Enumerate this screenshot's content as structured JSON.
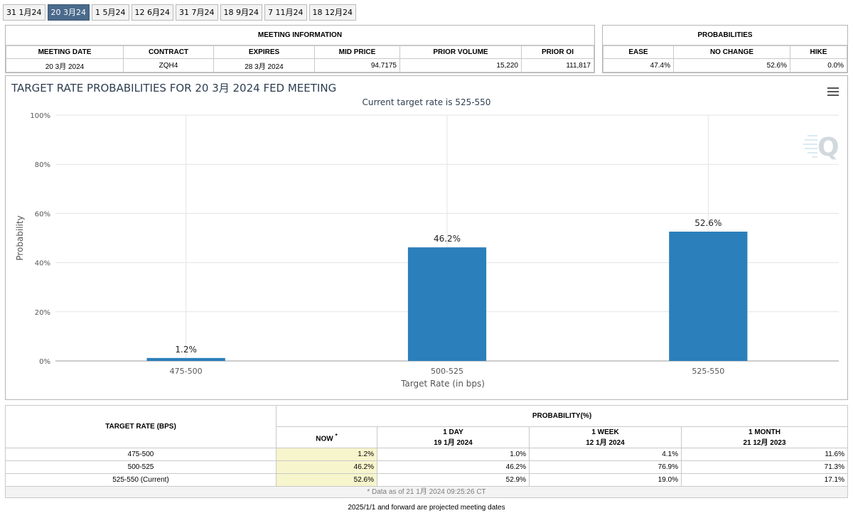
{
  "tabs": [
    "31 1月24",
    "20 3月24",
    "1 5月24",
    "12 6月24",
    "31 7月24",
    "18 9月24",
    "7 11月24",
    "18 12月24"
  ],
  "active_tab": 1,
  "meeting_info": {
    "title": "MEETING INFORMATION",
    "headers": [
      "MEETING DATE",
      "CONTRACT",
      "EXPIRES",
      "MID PRICE",
      "PRIOR VOLUME",
      "PRIOR OI"
    ],
    "values": [
      "20 3月 2024",
      "ZQH4",
      "28 3月 2024",
      "94.7175",
      "15,220",
      "111,817"
    ]
  },
  "probabilities": {
    "title": "PROBABILITIES",
    "headers": [
      "EASE",
      "NO CHANGE",
      "HIKE"
    ],
    "values": [
      "47.4%",
      "52.6%",
      "0.0%"
    ]
  },
  "chart": {
    "title": "TARGET RATE PROBABILITIES FOR 20 3月 2024 FED MEETING",
    "subtitle": "Current target rate is 525-550"
  },
  "chart_data": {
    "type": "bar",
    "title": "TARGET RATE PROBABILITIES FOR 20 3月 2024 FED MEETING",
    "subtitle": "Current target rate is 525-550",
    "categories": [
      "475-500",
      "500-525",
      "525-550"
    ],
    "values": [
      1.2,
      46.2,
      52.6
    ],
    "value_labels": [
      "1.2%",
      "46.2%",
      "52.6%"
    ],
    "xlabel": "Target Rate (in bps)",
    "ylabel": "Probability",
    "ylim": [
      0,
      100
    ],
    "yticks": [
      "0%",
      "20%",
      "40%",
      "60%",
      "80%",
      "100%"
    ],
    "grid": true,
    "bar_color": "#2b7fba"
  },
  "prob_table": {
    "col_header": "TARGET RATE (BPS)",
    "group_header": "PROBABILITY(%)",
    "now_label": "NOW",
    "now_mark": "*",
    "columns": [
      {
        "label": "1 DAY",
        "date": "19 1月 2024"
      },
      {
        "label": "1 WEEK",
        "date": "12 1月 2024"
      },
      {
        "label": "1 MONTH",
        "date": "21 12月 2023"
      }
    ],
    "rows": [
      {
        "rate": "475-500",
        "now": "1.2%",
        "day": "1.0%",
        "week": "4.1%",
        "month": "11.6%"
      },
      {
        "rate": "500-525",
        "now": "46.2%",
        "day": "46.2%",
        "week": "76.9%",
        "month": "71.3%"
      },
      {
        "rate": "525-550 (Current)",
        "now": "52.6%",
        "day": "52.9%",
        "week": "19.0%",
        "month": "17.1%"
      }
    ],
    "note": "* Data as of 21 1月 2024 09:25:26 CT"
  },
  "footer": "2025/1/1 and forward are projected meeting dates",
  "icons": {
    "menu": "hamburger-menu-icon",
    "logo": "q-logo-icon"
  }
}
